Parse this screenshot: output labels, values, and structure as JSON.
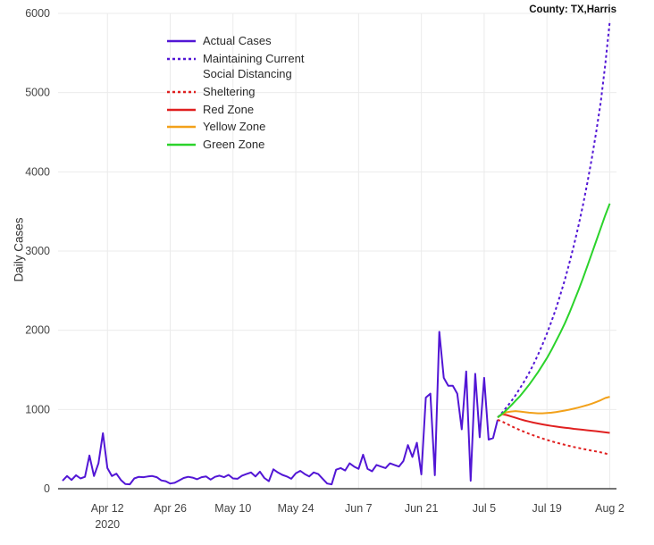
{
  "title": "County: TX,Harris",
  "y_axis_label": "Daily Cases",
  "chart_data": {
    "type": "line",
    "title": "County: TX,Harris",
    "xlabel": "",
    "ylabel": "Daily Cases",
    "xlim": [
      0,
      124.5
    ],
    "ylim": [
      0,
      6000
    ],
    "x_unit": "days since 2020-04-01",
    "grid": true,
    "grid_color": "#ebebeb",
    "axis_line_color": "#222222",
    "tick_label_color": "#444444",
    "legend_position": "top-left",
    "y_ticks": [
      0,
      1000,
      2000,
      3000,
      4000,
      5000,
      6000
    ],
    "x_ticks": [
      {
        "x": 11,
        "label": "Apr 12",
        "sublabel": "2020"
      },
      {
        "x": 25,
        "label": "Apr 26"
      },
      {
        "x": 39,
        "label": "May 10"
      },
      {
        "x": 53,
        "label": "May 24"
      },
      {
        "x": 67,
        "label": "Jun 7"
      },
      {
        "x": 81,
        "label": "Jun 21"
      },
      {
        "x": 95,
        "label": "Jul 5"
      },
      {
        "x": 109,
        "label": "Jul 19"
      },
      {
        "x": 123,
        "label": "Aug 2"
      }
    ],
    "series": [
      {
        "name": "Actual Cases",
        "color": "#5216d5",
        "dash": "solid",
        "x0": 1,
        "values": [
          100,
          160,
          110,
          170,
          130,
          150,
          420,
          160,
          320,
          700,
          260,
          160,
          190,
          110,
          60,
          55,
          130,
          150,
          145,
          155,
          160,
          145,
          105,
          95,
          65,
          75,
          105,
          135,
          150,
          140,
          120,
          145,
          155,
          115,
          150,
          165,
          145,
          175,
          130,
          125,
          165,
          185,
          205,
          155,
          215,
          135,
          95,
          245,
          205,
          175,
          155,
          125,
          195,
          225,
          185,
          155,
          205,
          185,
          125,
          65,
          55,
          240,
          260,
          230,
          320,
          280,
          250,
          430,
          250,
          220,
          300,
          280,
          260,
          320,
          300,
          280,
          350,
          550,
          400,
          580,
          180,
          1150,
          1200,
          170,
          1980,
          1400,
          1300,
          1300,
          1200,
          750,
          1480,
          100,
          1450,
          650,
          1400,
          620,
          640,
          870
        ]
      },
      {
        "name": "Maintaining Current Social Distancing",
        "color": "#5216d5",
        "dash": "dot",
        "x0": 98,
        "values": [
          900,
          960,
          1030,
          1100,
          1180,
          1270,
          1360,
          1460,
          1570,
          1690,
          1820,
          1960,
          2110,
          2270,
          2450,
          2640,
          2850,
          3070,
          3310,
          3570,
          3860,
          4170,
          4510,
          4880,
          5350,
          5900
        ]
      },
      {
        "name": "Sheltering",
        "color": "#e02020",
        "dash": "dot",
        "x0": 98,
        "values": [
          870,
          848,
          820,
          792,
          765,
          740,
          716,
          694,
          673,
          653,
          634,
          616,
          599,
          583,
          568,
          554,
          540,
          527,
          515,
          503,
          492,
          481,
          470,
          459,
          445,
          430
        ]
      },
      {
        "name": "Red Zone",
        "color": "#e02020",
        "dash": "solid",
        "x0": 98,
        "values": [
          900,
          940,
          930,
          912,
          895,
          878,
          862,
          848,
          835,
          823,
          812,
          802,
          793,
          785,
          777,
          770,
          763,
          756,
          750,
          744,
          738,
          732,
          726,
          720,
          712,
          705
        ]
      },
      {
        "name": "Yellow Zone",
        "color": "#f2a11a",
        "dash": "solid",
        "x0": 98,
        "values": [
          900,
          940,
          965,
          975,
          980,
          975,
          968,
          960,
          955,
          952,
          952,
          955,
          960,
          968,
          977,
          987,
          998,
          1010,
          1024,
          1040,
          1056,
          1074,
          1095,
          1118,
          1145,
          1160
        ]
      },
      {
        "name": "Green Zone",
        "color": "#2bd32b",
        "dash": "solid",
        "x0": 98,
        "values": [
          900,
          945,
          995,
          1050,
          1110,
          1170,
          1240,
          1310,
          1390,
          1470,
          1560,
          1650,
          1750,
          1860,
          1970,
          2090,
          2220,
          2360,
          2500,
          2650,
          2810,
          2970,
          3130,
          3290,
          3450,
          3600
        ]
      }
    ]
  }
}
